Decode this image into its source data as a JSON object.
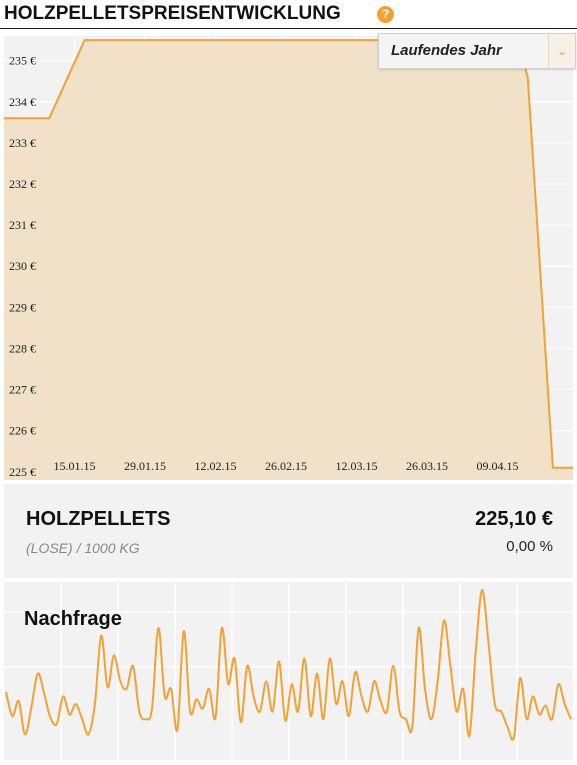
{
  "header": {
    "title": "HOLZPELLETSPREISENTWICKLUNG",
    "help_icon": "question-icon",
    "help_glyph": "?"
  },
  "period_select": {
    "selected": "Laufendes Jahr",
    "icon": "chevron-down-icon",
    "glyph": "⌄"
  },
  "colors": {
    "accent": "#f2a233",
    "area_fill": "#f0dfc6",
    "panel_bg": "#f2f2f2",
    "grid": "#ffffff"
  },
  "chart_data": [
    {
      "type": "area",
      "y_ticks": [
        "225 €",
        "226 €",
        "227 €",
        "228 €",
        "229 €",
        "230 €",
        "231 €",
        "232 €",
        "233 €",
        "234 €",
        "235 €"
      ],
      "x_ticks": [
        "15.01.15",
        "29.01.15",
        "12.02.15",
        "26.02.15",
        "12.03.15",
        "26.03.15",
        "09.04.15"
      ],
      "ylim": [
        224.8,
        235.6
      ],
      "x": [
        "2015-01-01",
        "2015-01-10",
        "2015-01-17",
        "2015-04-13",
        "2015-04-15",
        "2015-04-20",
        "2015-04-24"
      ],
      "values": [
        233.6,
        233.6,
        235.5,
        235.5,
        234.6,
        225.1,
        225.1
      ],
      "x_range": [
        "2015-01-01",
        "2015-04-24"
      ],
      "grid": true
    },
    {
      "type": "line",
      "title": "Nachfrage",
      "values": [
        0.33,
        0.17,
        0.27,
        0.05,
        0.23,
        0.45,
        0.32,
        0.16,
        0.12,
        0.3,
        0.18,
        0.25,
        0.15,
        0.05,
        0.25,
        0.7,
        0.36,
        0.57,
        0.4,
        0.35,
        0.5,
        0.2,
        0.15,
        0.22,
        0.75,
        0.3,
        0.35,
        0.08,
        0.73,
        0.2,
        0.28,
        0.22,
        0.35,
        0.16,
        0.75,
        0.38,
        0.55,
        0.13,
        0.5,
        0.3,
        0.2,
        0.4,
        0.2,
        0.53,
        0.14,
        0.38,
        0.2,
        0.55,
        0.17,
        0.45,
        0.15,
        0.55,
        0.25,
        0.4,
        0.17,
        0.46,
        0.3,
        0.2,
        0.4,
        0.27,
        0.2,
        0.5,
        0.2,
        0.15,
        0.1,
        0.75,
        0.35,
        0.15,
        0.4,
        0.8,
        0.5,
        0.2,
        0.35,
        0.04,
        0.6,
        1.0,
        0.65,
        0.25,
        0.2,
        0.1,
        0.03,
        0.42,
        0.15,
        0.3,
        0.18,
        0.24,
        0.15,
        0.38,
        0.25,
        0.15
      ],
      "ylim": [
        0,
        1
      ]
    }
  ],
  "product": {
    "name": "HOLZPELLETS",
    "unit": "(LOSE) / 1000 KG",
    "price": "225,10 €",
    "change": "0,00 %"
  }
}
